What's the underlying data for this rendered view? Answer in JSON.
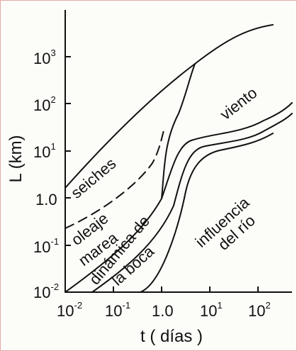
{
  "axes": {
    "x_title": "t ( días )",
    "y_title": "L (km)",
    "x_ticks": [
      {
        "base": "10",
        "exp": "-2"
      },
      {
        "base": "10",
        "exp": "-1"
      },
      {
        "base": "1.0",
        "exp": ""
      },
      {
        "base": "10",
        "exp": "1"
      },
      {
        "base": "10",
        "exp": "2"
      }
    ],
    "y_ticks": [
      {
        "base": "10",
        "exp": "3"
      },
      {
        "base": "10",
        "exp": "2"
      },
      {
        "base": "10",
        "exp": "1"
      },
      {
        "base": "1.0",
        "exp": ""
      },
      {
        "base": "10",
        "exp": "-1"
      },
      {
        "base": "10",
        "exp": "-2"
      }
    ]
  },
  "regions": {
    "seiches": "seiches",
    "viento": "viento",
    "oleaje": "oleaje",
    "marea": "marea",
    "dinamica_1": "dinámica de",
    "dinamica_2": "la boca",
    "influencia_1": "influencia",
    "influencia_2": "del río"
  },
  "colors": {
    "ink": "#111111",
    "background": "#fcfcf8",
    "border": "#e6a8a8"
  }
}
